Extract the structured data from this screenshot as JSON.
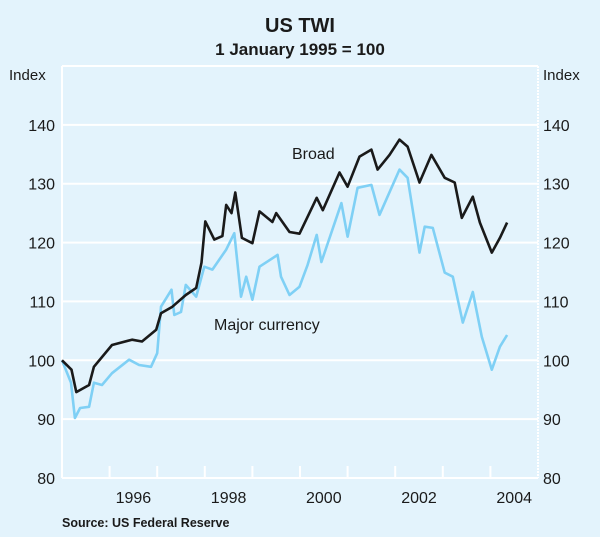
{
  "chart_data": {
    "type": "line",
    "title": "US TWI",
    "subtitle": "1 January 1995 = 100",
    "ylabel_left": "Index",
    "ylabel_right": "Index",
    "ylim": [
      80,
      150
    ],
    "yticks": [
      80,
      90,
      100,
      110,
      120,
      130,
      140
    ],
    "xlim": [
      1995,
      2005
    ],
    "xtick_labels": [
      "1996",
      "1998",
      "2000",
      "2002",
      "2004"
    ],
    "xtick_label_years": [
      1996,
      1998,
      2000,
      2002,
      2004
    ],
    "grid": true,
    "source": "Source: US Federal Reserve",
    "series": [
      {
        "name": "Broad",
        "color": "#1a1a1a",
        "x": [
          1995.0,
          1995.2,
          1995.3,
          1995.57,
          1995.67,
          1996.05,
          1996.47,
          1996.68,
          1996.98,
          1997.08,
          1997.32,
          1997.6,
          1997.82,
          1997.93,
          1998.01,
          1998.2,
          1998.37,
          1998.45,
          1998.56,
          1998.64,
          1998.78,
          1999.0,
          1999.15,
          1999.42,
          1999.5,
          1999.78,
          1999.99,
          2000.35,
          2000.48,
          2000.83,
          2001.0,
          2001.25,
          2001.5,
          2001.63,
          2001.88,
          2002.09,
          2002.26,
          2002.51,
          2002.76,
          2003.04,
          2003.25,
          2003.4,
          2003.63,
          2003.78,
          2004.03,
          2004.2,
          2004.35
        ],
        "y": [
          100,
          98.4,
          94.6,
          95.8,
          98.9,
          102.6,
          103.5,
          103.2,
          105.2,
          108,
          109.1,
          111.1,
          112.3,
          116.6,
          123.6,
          120.5,
          121.1,
          126.4,
          125,
          128.5,
          120.8,
          119.9,
          125.3,
          123.5,
          125,
          121.8,
          121.5,
          127.6,
          125.5,
          131.9,
          129.5,
          134.6,
          135.8,
          132.4,
          134.9,
          137.5,
          136.3,
          130.2,
          134.9,
          131,
          130.2,
          124.2,
          127.8,
          123.4,
          118.3,
          120.8,
          123.4
        ]
      },
      {
        "name": "Major currency",
        "color": "#7fd0f5",
        "x": [
          1995.0,
          1995.19,
          1995.27,
          1995.38,
          1995.57,
          1995.67,
          1995.84,
          1996.05,
          1996.41,
          1996.62,
          1996.87,
          1997.0,
          1997.08,
          1997.3,
          1997.36,
          1997.5,
          1997.6,
          1997.82,
          1997.99,
          1998.16,
          1998.45,
          1998.62,
          1998.76,
          1998.87,
          1999.0,
          1999.15,
          1999.53,
          1999.6,
          1999.78,
          1999.99,
          2000.16,
          2000.35,
          2000.45,
          2000.87,
          2001.0,
          2001.21,
          2001.5,
          2001.67,
          2002.09,
          2002.26,
          2002.51,
          2002.62,
          2002.79,
          2003.04,
          2003.21,
          2003.42,
          2003.63,
          2003.82,
          2004.03,
          2004.2,
          2004.35
        ],
        "y": [
          100,
          96.2,
          90.2,
          91.9,
          92.1,
          96.2,
          95.8,
          97.8,
          100.1,
          99.2,
          98.9,
          101.2,
          109.1,
          112,
          107.7,
          108.2,
          112.8,
          110.8,
          115.9,
          115.4,
          118.8,
          121.6,
          110.8,
          114.2,
          110.3,
          115.9,
          117.9,
          114.2,
          111.1,
          112.5,
          116.2,
          121.3,
          116.7,
          126.7,
          121,
          129.3,
          129.8,
          124.7,
          132.4,
          131,
          118.3,
          122.7,
          122.5,
          114.9,
          114.2,
          106.4,
          111.6,
          104,
          98.4,
          102.3,
          104.3
        ]
      }
    ]
  }
}
